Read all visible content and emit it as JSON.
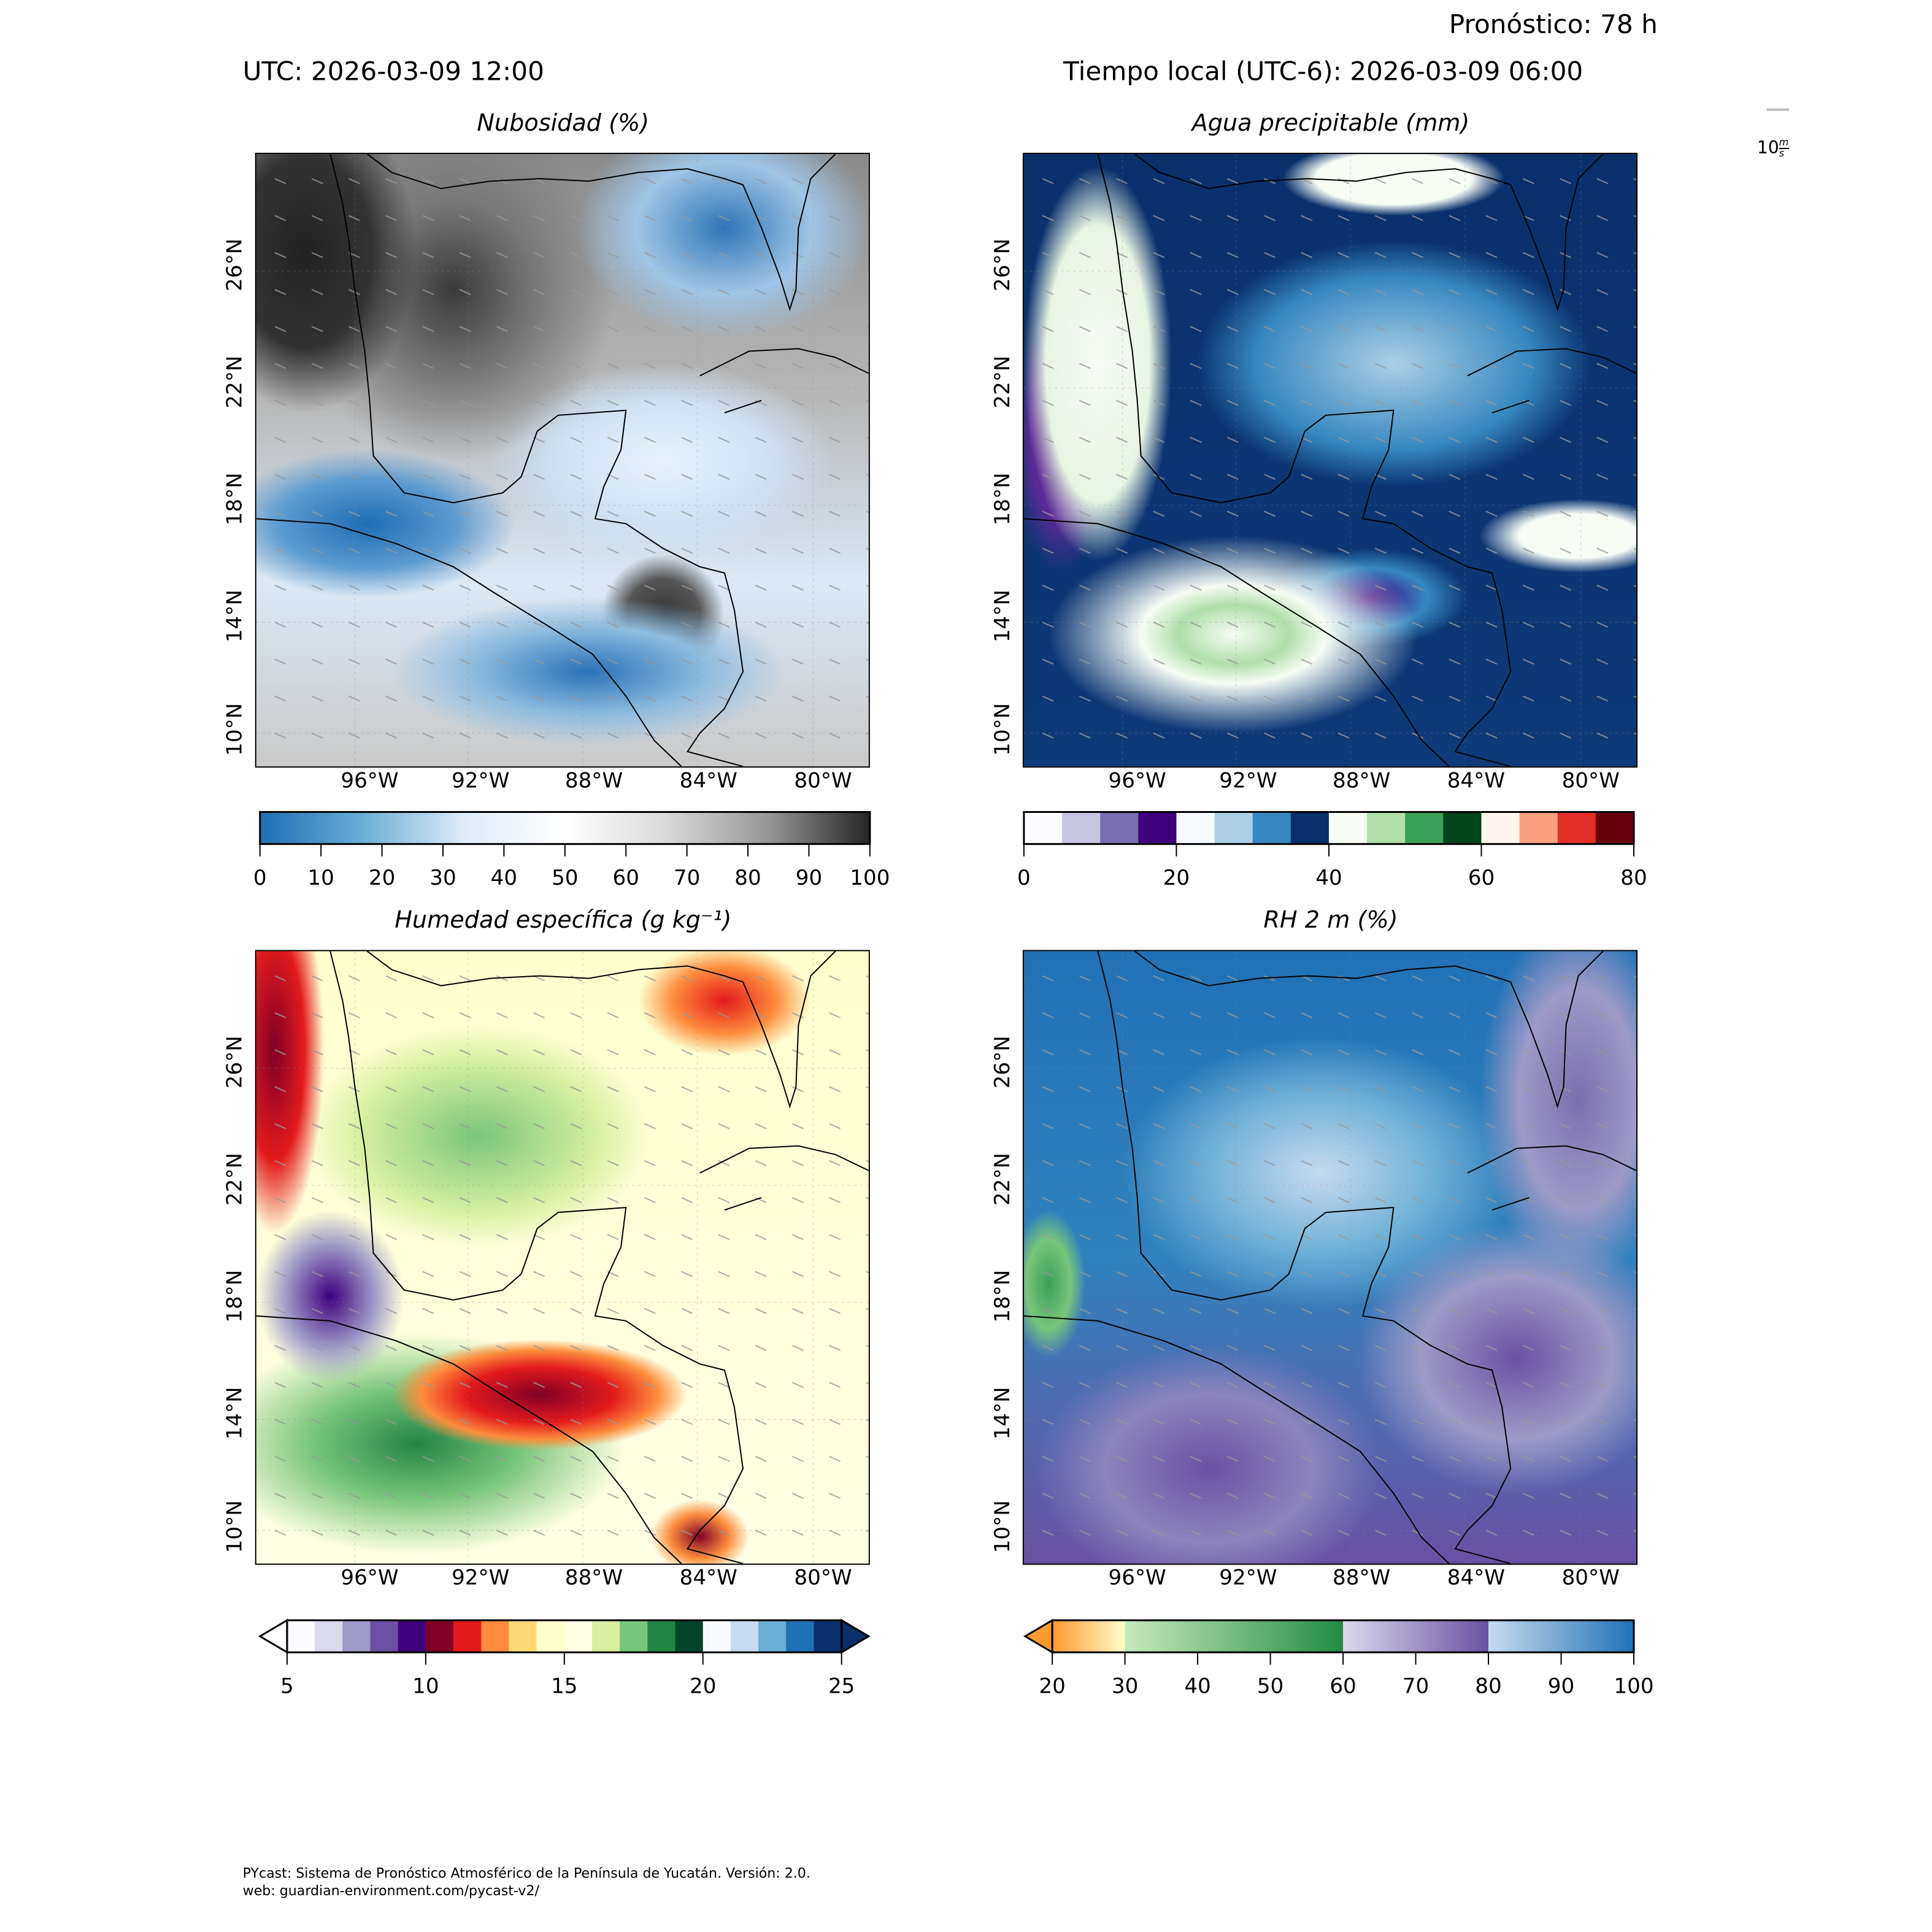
{
  "header": {
    "forecast": "Pronóstico: 78 h",
    "utc": "UTC:  2026-03-09 12:00",
    "local": "Tiempo local (UTC-6): 2026-03-09 06:00"
  },
  "wind_key": {
    "value": "10",
    "unit_num": "m",
    "unit_den": "s",
    "color": "#bdbdbd"
  },
  "axes": {
    "lat_labels": [
      "26°N",
      "22°N",
      "18°N",
      "14°N",
      "10°N"
    ],
    "lon_labels": [
      "96°W",
      "92°W",
      "88°W",
      "84°W",
      "80°W"
    ]
  },
  "panels": [
    {
      "title": "Nubosidad (%)"
    },
    {
      "title": "Agua precipitable (mm)"
    },
    {
      "title": "Humedad específica (g kg⁻¹)"
    },
    {
      "title": "RH 2 m (%)"
    }
  ],
  "chart_data": [
    {
      "type": "heatmap",
      "title": "Nubosidad (%)",
      "colorbar": {
        "range": [
          0,
          100
        ],
        "ticks": [
          "0",
          "10",
          "20",
          "30",
          "40",
          "50",
          "60",
          "70",
          "80",
          "90",
          "100"
        ],
        "continuous": true,
        "stops": [
          "#1f6eb4",
          "#6aaed6",
          "#deebf7",
          "#ffffff",
          "#d9d9d9",
          "#969696",
          "#252525"
        ],
        "extend": "neither"
      }
    },
    {
      "type": "heatmap",
      "title": "Agua precipitable (mm)",
      "colorbar": {
        "range": [
          0,
          80
        ],
        "ticks": [
          "0",
          "20",
          "40",
          "60",
          "80"
        ],
        "step": 5,
        "colors": [
          "#fcfbfd",
          "#c6c6e1",
          "#7a6fb0",
          "#3f007d",
          "#f7fbff",
          "#abd0e6",
          "#3787c0",
          "#08306b",
          "#f7fcf5",
          "#b0dfaa",
          "#3aa057",
          "#00441b",
          "#fff5f0",
          "#fca082",
          "#e32f27",
          "#67000d"
        ],
        "extend": "neither"
      }
    },
    {
      "type": "heatmap",
      "title": "Humedad específica (g kg⁻¹)",
      "colorbar": {
        "range": [
          5,
          25
        ],
        "ticks": [
          "5",
          "10",
          "15",
          "20",
          "25"
        ],
        "step": 1,
        "colors": [
          "#fcfbfd",
          "#dadaeb",
          "#9e9ac8",
          "#6a51a3",
          "#3f007d",
          "#800026",
          "#e31a1c",
          "#fd8d3c",
          "#fed976",
          "#ffffcc",
          "#ffffe5",
          "#d9f0a3",
          "#78c679",
          "#238443",
          "#004529",
          "#f7fbff",
          "#c6dbef",
          "#6baed6",
          "#2171b5",
          "#08306b"
        ],
        "extend": "both",
        "under": "#ffffff",
        "over": "#08306b"
      }
    },
    {
      "type": "heatmap",
      "title": "RH 2 m (%)",
      "colorbar": {
        "range": [
          20,
          100
        ],
        "ticks": [
          "20",
          "30",
          "40",
          "50",
          "60",
          "70",
          "80",
          "90",
          "100"
        ],
        "continuous": true,
        "segments": [
          {
            "from": 20,
            "to": 30,
            "stops": [
              "#fd9a2e",
              "#ffffcc"
            ]
          },
          {
            "from": 30,
            "to": 60,
            "stops": [
              "#c7e9c0",
              "#238b45"
            ]
          },
          {
            "from": 60,
            "to": 80,
            "stops": [
              "#dadaeb",
              "#6a51a3"
            ]
          },
          {
            "from": 80,
            "to": 100,
            "stops": [
              "#c6dbef",
              "#2171b5"
            ]
          }
        ],
        "extend": "min",
        "under": "#fd9a2e"
      }
    }
  ],
  "footer": {
    "line1": "PYcast: Sistema de Pronóstico Atmosférico de la Península de Yucatán. Versión: 2.0.",
    "line2": "web: guardian-environment.com/pycast-v2/"
  }
}
